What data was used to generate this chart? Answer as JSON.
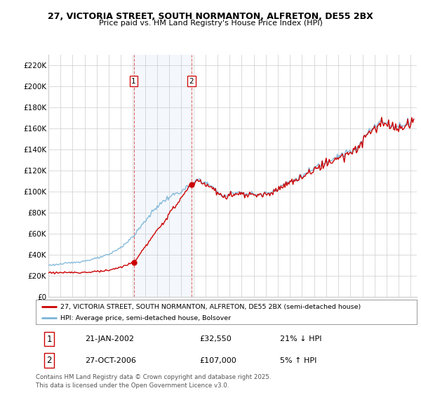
{
  "title1": "27, VICTORIA STREET, SOUTH NORMANTON, ALFRETON, DE55 2BX",
  "title2": "Price paid vs. HM Land Registry's House Price Index (HPI)",
  "xlim_start": 1995.0,
  "xlim_end": 2025.5,
  "ylim": [
    0,
    230000
  ],
  "yticks": [
    0,
    20000,
    40000,
    60000,
    80000,
    100000,
    120000,
    140000,
    160000,
    180000,
    200000,
    220000
  ],
  "ytick_labels": [
    "£0",
    "£20K",
    "£40K",
    "£60K",
    "£80K",
    "£100K",
    "£120K",
    "£140K",
    "£160K",
    "£180K",
    "£200K",
    "£220K"
  ],
  "hpi_color": "#7ab4d8",
  "price_color": "#cc0000",
  "vline_color": "#cc0000",
  "marker1_date": 2002.06,
  "marker1_price": 32550,
  "marker1_label": "1",
  "marker2_date": 2006.83,
  "marker2_price": 107000,
  "marker2_label": "2",
  "sale1_date_str": "21-JAN-2002",
  "sale1_price_str": "£32,550",
  "sale1_hpi_str": "21% ↓ HPI",
  "sale2_date_str": "27-OCT-2006",
  "sale2_price_str": "£107,000",
  "sale2_hpi_str": "5% ↑ HPI",
  "legend_line1": "27, VICTORIA STREET, SOUTH NORMANTON, ALFRETON, DE55 2BX (semi-detached house)",
  "legend_line2": "HPI: Average price, semi-detached house, Bolsover",
  "footnote": "Contains HM Land Registry data © Crown copyright and database right 2025.\nThis data is licensed under the Open Government Licence v3.0.",
  "background_color": "#ffffff",
  "grid_color": "#cccccc"
}
